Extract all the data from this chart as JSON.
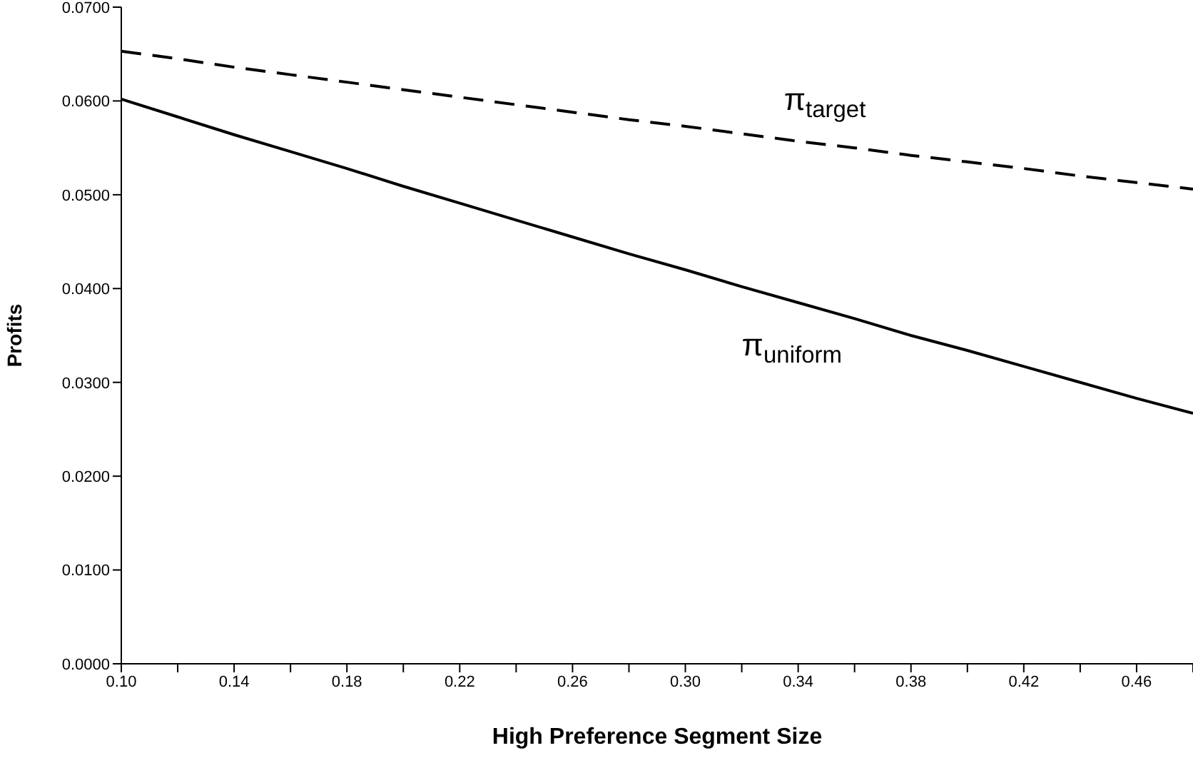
{
  "chart_data": {
    "type": "line",
    "xlabel": "High Preference Segment Size",
    "ylabel": "Profits",
    "categories": [
      "0.10",
      null,
      "0.14",
      null,
      "0.18",
      null,
      "0.22",
      null,
      "0.26",
      null,
      "0.30",
      null,
      "0.34",
      null,
      "0.38",
      null,
      "0.42",
      null,
      "0.46",
      null
    ],
    "series": [
      {
        "name": "π$_{target}$",
        "color": "#000000",
        "line_style": "dashed",
        "values": [
          0.0653,
          0.0645,
          0.0636,
          0.0628,
          0.062,
          0.0612,
          0.0604,
          0.0596,
          0.0588,
          0.058,
          0.0573,
          0.0565,
          0.0557,
          0.055,
          0.0542,
          0.0535,
          0.0528,
          0.052,
          0.0513,
          0.0506
        ]
      },
      {
        "name": "π$_{uniform}$",
        "color": "#000000",
        "line_style": "solid",
        "values": [
          0.0602,
          0.0583,
          0.0564,
          0.0546,
          0.0528,
          0.0509,
          0.0491,
          0.0473,
          0.0455,
          0.0437,
          0.042,
          0.0402,
          0.0385,
          0.0368,
          0.035,
          0.0334,
          0.0317,
          0.03,
          0.0283,
          0.0267
        ]
      }
    ],
    "ylim": [
      0,
      0.07
    ],
    "yticks": [
      {
        "value": 0,
        "label": "0.0000"
      },
      {
        "value": 0.01,
        "label": "0.0100"
      },
      {
        "value": 0.02,
        "label": "0.0200"
      },
      {
        "value": 0.03,
        "label": "0.0300"
      },
      {
        "value": 0.04,
        "label": "0.0400"
      },
      {
        "value": 0.05,
        "label": "0.0500"
      },
      {
        "value": 0.06,
        "label": "0.0600"
      },
      {
        "value": 0.07,
        "label": "0.0700"
      }
    ],
    "grid": false,
    "legend": false,
    "marker": "none"
  }
}
